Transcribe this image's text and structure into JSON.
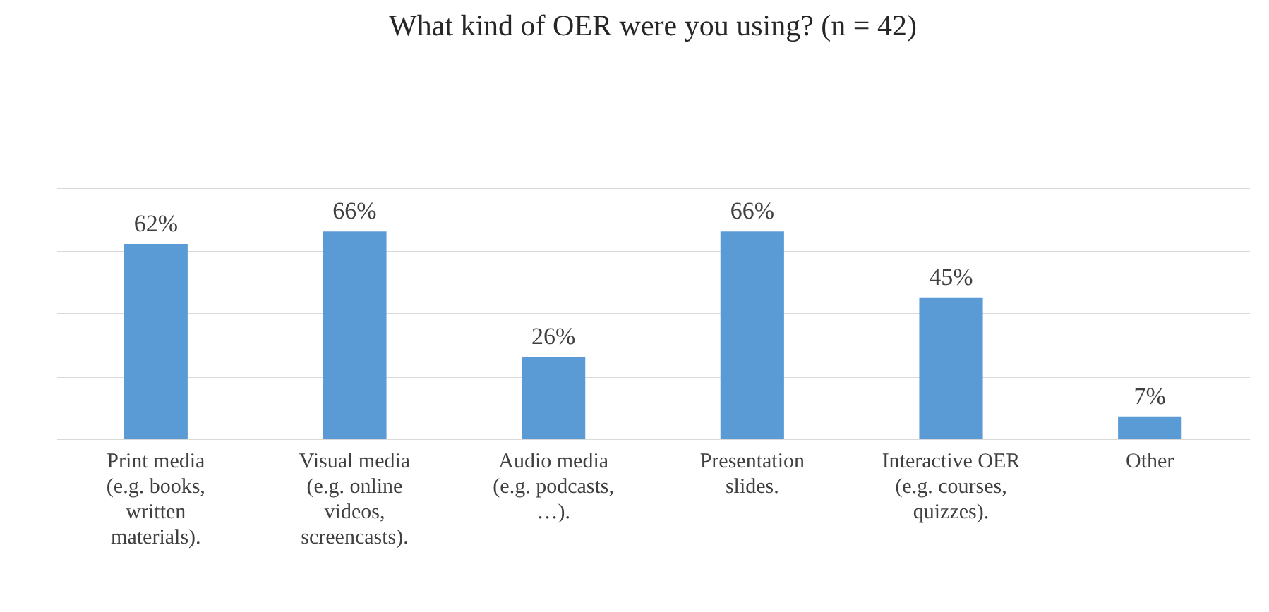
{
  "chart_data": {
    "type": "bar",
    "title": "What kind  of OER were you using? (n = 42)",
    "categories": [
      "Print media\n(e.g. books,\nwritten\nmaterials).",
      "Visual media\n(e.g. online\nvideos,\nscreencasts).",
      "Audio media\n(e.g. podcasts,\n…).",
      "Presentation\nslides.",
      "Interactive OER\n(e.g. courses,\nquizzes).",
      "Other"
    ],
    "values": [
      62,
      66,
      26,
      66,
      45,
      7
    ],
    "value_labels": [
      "62%",
      "66%",
      "26%",
      "66%",
      "45%",
      "7%"
    ],
    "color": "#5b9bd5",
    "ylim": [
      0,
      80
    ],
    "yticks": [
      {
        "value": 0,
        "label": null
      },
      {
        "value": 20,
        "label": null
      },
      {
        "value": 40,
        "label": null
      },
      {
        "value": 60,
        "label": null
      },
      {
        "value": 80,
        "label": null
      }
    ],
    "grid": "y",
    "tick_labels": "x"
  }
}
